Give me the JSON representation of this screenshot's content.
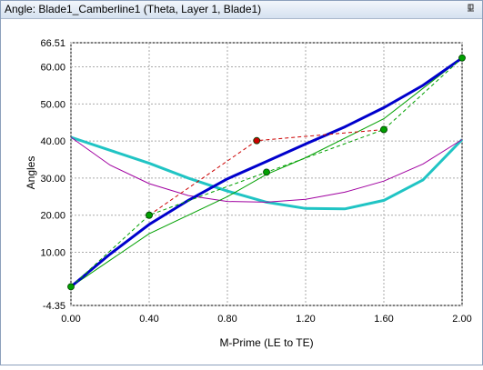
{
  "panel_title": "Angle: Blade1_Camberline1 (Theta, Layer 1, Blade1)",
  "chart_data": {
    "type": "line",
    "x_label": "M-Prime (LE to TE)",
    "y_label": "Angles",
    "xlim": [
      0,
      2
    ],
    "ylim": [
      -4.35,
      66.51
    ],
    "xticks": [
      {
        "value": 0,
        "label": "0.00"
      },
      {
        "value": 0.4,
        "label": "0.40"
      },
      {
        "value": 0.8,
        "label": "0.80"
      },
      {
        "value": 1.2,
        "label": "1.20"
      },
      {
        "value": 1.6,
        "label": "1.60"
      },
      {
        "value": 2,
        "label": "2.00"
      }
    ],
    "yticks": [
      {
        "value": -4.35,
        "label": "-4.35"
      },
      {
        "value": 10,
        "label": "10.00"
      },
      {
        "value": 20,
        "label": "20.00"
      },
      {
        "value": 30,
        "label": "30.00"
      },
      {
        "value": 40,
        "label": "40.00"
      },
      {
        "value": 50,
        "label": "50.00"
      },
      {
        "value": 60,
        "label": "60.00"
      },
      {
        "value": 66.51,
        "label": "66.51"
      }
    ],
    "grid": true,
    "series": [
      {
        "color": "#20c4c4",
        "width": 3,
        "x": [
          0,
          0.2,
          0.4,
          0.6,
          0.8,
          1.0,
          1.2,
          1.4,
          1.6,
          1.8,
          2.0
        ],
        "values": [
          41,
          37.5,
          34,
          30,
          26.5,
          23.5,
          21.8,
          21.7,
          24,
          29.5,
          40.4
        ]
      },
      {
        "color": "#a000a0",
        "width": 1,
        "x": [
          0,
          0.2,
          0.4,
          0.6,
          0.8,
          1.0,
          1.2,
          1.4,
          1.6,
          1.8,
          2.0
        ],
        "values": [
          41,
          33.5,
          28.5,
          25.3,
          23.7,
          23.5,
          24.3,
          26.2,
          29.2,
          33.8,
          40.4
        ]
      },
      {
        "color": "#00a000",
        "width": 1,
        "x": [
          0,
          0.4,
          0.8,
          1.0,
          1.2,
          1.6,
          2.0
        ],
        "values": [
          0.7,
          15,
          25,
          31,
          35.5,
          46,
          62.4
        ]
      },
      {
        "color": "#0000cc",
        "width": 3,
        "x": [
          0,
          0.2,
          0.4,
          0.6,
          0.8,
          1.0,
          1.2,
          1.4,
          1.6,
          1.8,
          2.0
        ],
        "values": [
          0.7,
          9.5,
          17.5,
          24,
          29.8,
          34.5,
          39.2,
          43.8,
          49,
          55,
          62.4
        ]
      },
      {
        "color": "#cc0000",
        "width": 1,
        "dashed": true,
        "markers": true,
        "x": [
          0.4,
          0.95,
          1.6
        ],
        "values": [
          20,
          40.1,
          43.1
        ]
      },
      {
        "color": "#00a000",
        "width": 1,
        "dashed": true,
        "markers": true,
        "x": [
          0,
          0.4,
          1.0,
          1.6,
          2.0
        ],
        "values": [
          0.7,
          20,
          31.6,
          43.1,
          62.4
        ]
      }
    ]
  }
}
